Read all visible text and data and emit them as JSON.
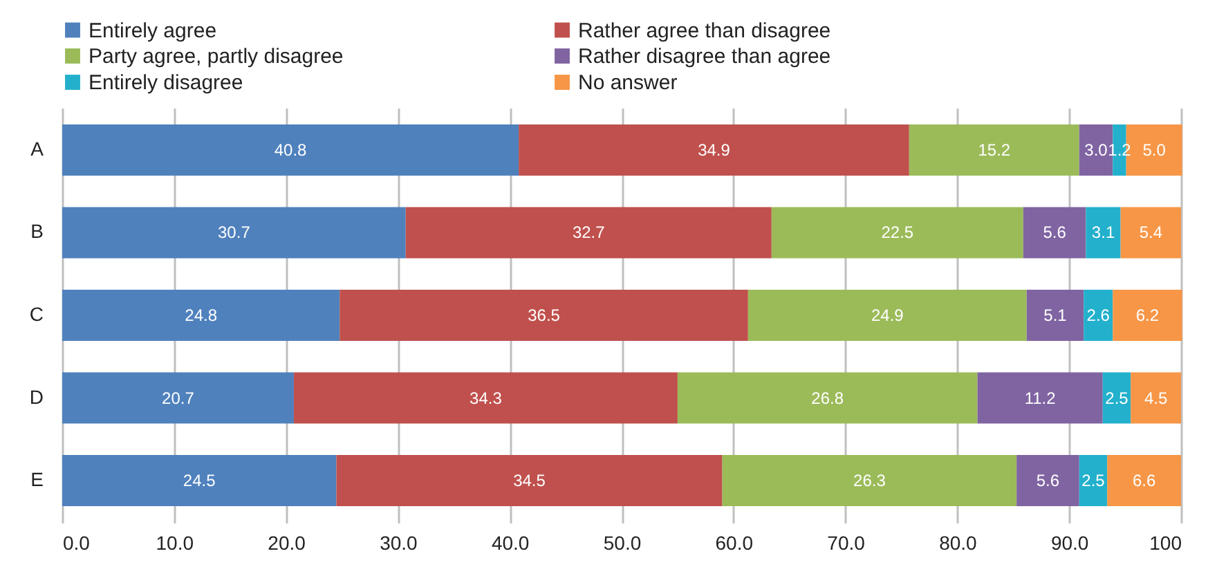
{
  "chart_data": {
    "type": "bar",
    "orientation": "horizontal",
    "stacked": true,
    "grid": "x",
    "legend": "top",
    "categories": [
      "A",
      "B",
      "C",
      "D",
      "E"
    ],
    "series": [
      {
        "name": "Entirely agree",
        "color": "#4f81bd",
        "values": [
          40.8,
          30.7,
          24.8,
          20.7,
          24.5
        ],
        "value_labels": [
          "40.8",
          "30.7",
          "24.8",
          "20.7",
          "24.5"
        ]
      },
      {
        "name": "Rather agree than disagree",
        "color": "#c0504d",
        "values": [
          34.9,
          32.7,
          36.5,
          34.3,
          34.5
        ],
        "value_labels": [
          "34.9",
          "32.7",
          "36.5",
          "34.3",
          "34.5"
        ]
      },
      {
        "name": "Party agree, partly disagree",
        "color": "#9bbb59",
        "values": [
          15.2,
          22.5,
          24.9,
          26.8,
          26.3
        ],
        "value_labels": [
          "15.2",
          "22.5",
          "24.9",
          "26.8",
          "26.3"
        ]
      },
      {
        "name": "Rather disagree than agree",
        "color": "#8064a2",
        "values": [
          3.0,
          5.6,
          5.1,
          11.2,
          5.6
        ],
        "value_labels": [
          "3.0",
          "5.6",
          "5.1",
          "11.2",
          "5.6"
        ]
      },
      {
        "name": "Entirely disagree",
        "color": "#23b0cc",
        "values": [
          1.2,
          3.1,
          2.6,
          2.5,
          2.5
        ],
        "value_labels": [
          "1.2",
          "3.1",
          "2.6",
          "2.5",
          "2.5"
        ]
      },
      {
        "name": "No answer",
        "color": "#f79646",
        "values": [
          5.0,
          5.4,
          6.2,
          4.5,
          6.6
        ],
        "value_labels": [
          "5.0",
          "5.4",
          "6.2",
          "4.5",
          "6.6"
        ]
      }
    ],
    "xlim": [
      0,
      100
    ],
    "xticks": [
      {
        "value": 0,
        "label": "0.0"
      },
      {
        "value": 10,
        "label": "10.0"
      },
      {
        "value": 20,
        "label": "20.0"
      },
      {
        "value": 30,
        "label": "30.0"
      },
      {
        "value": 40,
        "label": "40.0"
      },
      {
        "value": 50,
        "label": "50.0"
      },
      {
        "value": 60,
        "label": "60.0"
      },
      {
        "value": 70,
        "label": "70.0"
      },
      {
        "value": 80,
        "label": "80.0"
      },
      {
        "value": 90,
        "label": "90.0"
      },
      {
        "value": 100,
        "label": "100"
      }
    ]
  }
}
